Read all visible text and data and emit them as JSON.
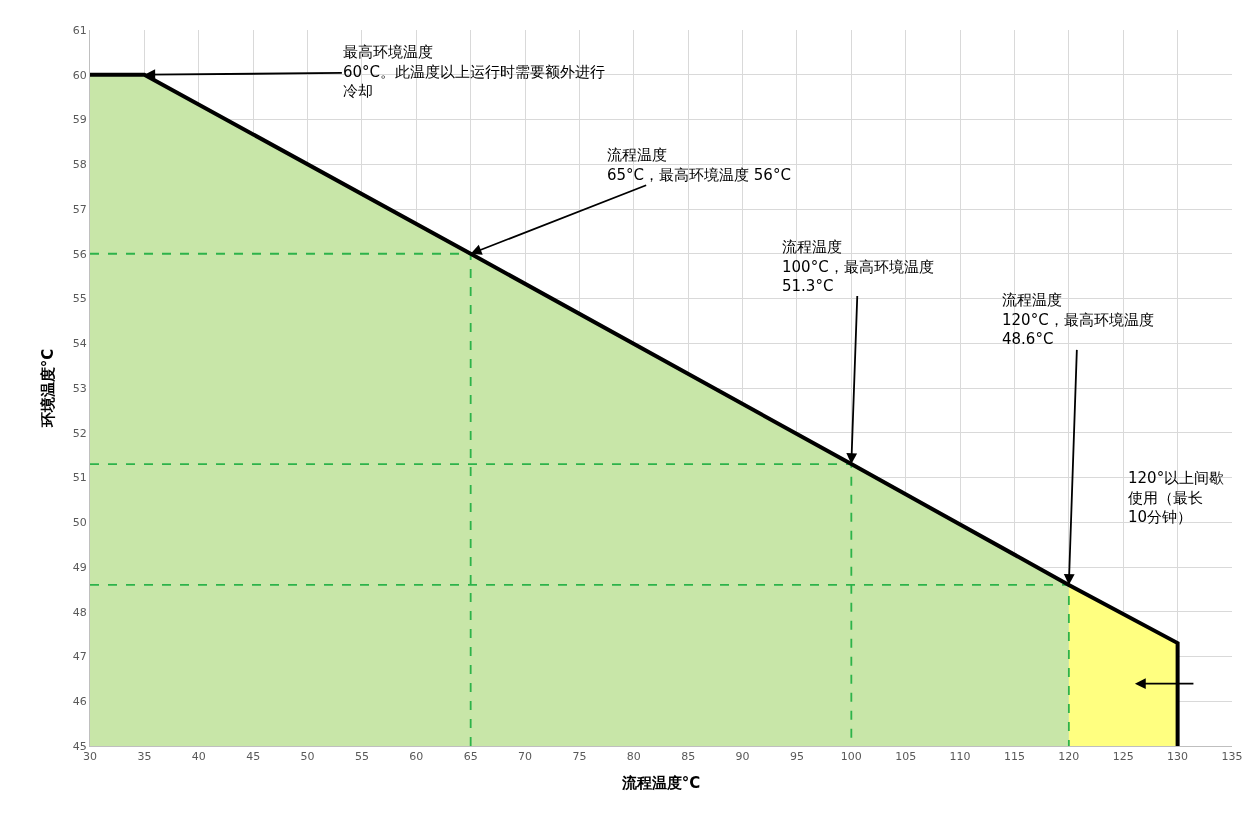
{
  "chart_data": {
    "type": "line",
    "xlabel": "流程温度°C",
    "ylabel": "环境温度°C",
    "xlim": [
      30,
      135
    ],
    "xticks": [
      30,
      35,
      40,
      45,
      50,
      55,
      60,
      65,
      70,
      75,
      80,
      85,
      90,
      95,
      100,
      105,
      110,
      115,
      120,
      125,
      130,
      135
    ],
    "ylim": [
      45,
      61
    ],
    "yticks": [
      45,
      46,
      47,
      48,
      49,
      50,
      51,
      52,
      53,
      54,
      55,
      56,
      57,
      58,
      59,
      60,
      61
    ],
    "grid": true,
    "marker": "none",
    "series": [
      {
        "type": "area",
        "color": "#c8e6a8",
        "x": [
          30,
          35,
          65,
          100,
          120
        ],
        "values": [
          60,
          60,
          56,
          51.3,
          48.6
        ]
      },
      {
        "type": "area",
        "color": "#ffff80",
        "x": [
          120,
          130
        ],
        "values": [
          48.6,
          47.3
        ]
      },
      {
        "type": "line",
        "color": "#2db34a",
        "line_style": "dashed",
        "x": [
          30,
          65,
          65
        ],
        "values": [
          56,
          56,
          45
        ]
      },
      {
        "type": "line",
        "color": "#2db34a",
        "line_style": "dashed",
        "x": [
          30,
          100,
          100
        ],
        "values": [
          51.3,
          51.3,
          45
        ]
      },
      {
        "type": "line",
        "color": "#2db34a",
        "line_style": "dashed",
        "x": [
          30,
          120,
          120
        ],
        "values": [
          48.6,
          48.6,
          45
        ]
      },
      {
        "color": "#000000",
        "line_style": "solid",
        "x": [
          30,
          35,
          65,
          100,
          120,
          130,
          130
        ],
        "values": [
          60,
          60,
          56,
          51.3,
          48.6,
          47.3,
          45
        ]
      }
    ],
    "annotations": [
      {
        "text": "最高环境温度 60°C。此温度以上运行时需要额外进行冷却",
        "x": 35,
        "y": 60
      },
      {
        "text": "流程温度 65°C，最高环境温度 56°C",
        "x": 65,
        "y": 56
      },
      {
        "text": "流程温度 100°C，最高环境温度 51.3°C",
        "x": 100,
        "y": 51.3
      },
      {
        "text": "流程温度 120°C，最高环境温度 48.6°C",
        "x": 120,
        "y": 48.6
      },
      "120°以上间歇使用（最长 10分钟）"
    ]
  }
}
